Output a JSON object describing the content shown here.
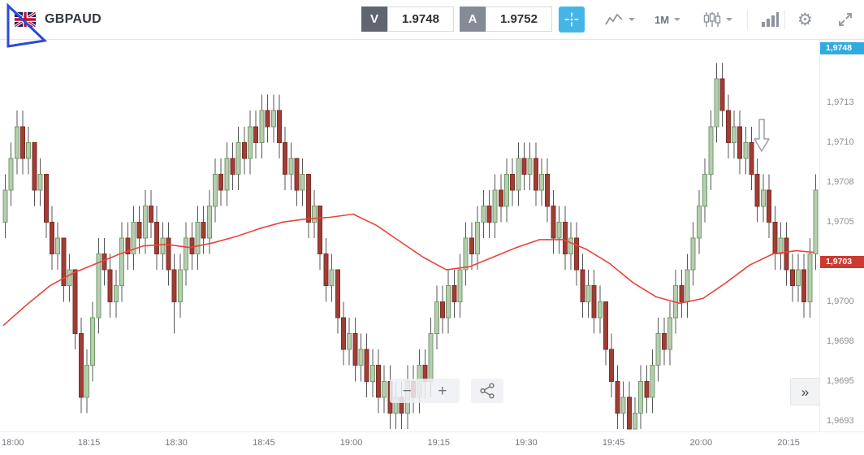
{
  "header": {
    "symbol": "GBPAUD",
    "sell": {
      "label": "V",
      "price": "1.9748"
    },
    "buy": {
      "label": "A",
      "price": "1.9752"
    },
    "timeframe_label": "1M"
  },
  "icons": {
    "gear": "⚙"
  },
  "chart_controls": {
    "zoom_out": "−",
    "zoom_in": "+",
    "collapse": "»"
  },
  "colors": {
    "bull_fill": "#b5cfae",
    "bull_stroke": "#739a6d",
    "bear_fill": "#a03d35",
    "bear_stroke": "#7d2f29",
    "wick": "#555555",
    "ma_line": "#e8443b",
    "bid_label_bg": "#33aadd",
    "last_price_bg": "#cc3a30",
    "accent_blue": "#45b5e8",
    "annotation_blue": "#2b4bd7"
  },
  "chart_data": {
    "type": "candlestick",
    "symbol": "GBPAUD",
    "timeframe": "1M",
    "price_range": [
      1.96918,
      1.97165
    ],
    "x_ticks": [
      {
        "index": 0,
        "label": "18:00"
      },
      {
        "index": 15,
        "label": "18:15"
      },
      {
        "index": 30,
        "label": "18:30"
      },
      {
        "index": 45,
        "label": "18:45"
      },
      {
        "index": 60,
        "label": "19:00"
      },
      {
        "index": 75,
        "label": "19:15"
      },
      {
        "index": 90,
        "label": "19:30"
      },
      {
        "index": 105,
        "label": "19:45"
      },
      {
        "index": 120,
        "label": "20:00"
      },
      {
        "index": 135,
        "label": "20:15"
      }
    ],
    "y_ticks": [
      {
        "value": 1.97125,
        "label": "1,9713"
      },
      {
        "value": 1.971,
        "label": "1,9710"
      },
      {
        "value": 1.97075,
        "label": "1,9708"
      },
      {
        "value": 1.9705,
        "label": "1,9705"
      },
      {
        "value": 1.97,
        "label": "1,9700"
      },
      {
        "value": 1.96975,
        "label": "1,9698"
      },
      {
        "value": 1.9695,
        "label": "1,9695"
      },
      {
        "value": 1.96925,
        "label": "1,9693"
      }
    ],
    "bid_label": {
      "label": "1,9748"
    },
    "last_price_label": {
      "value": 1.97025,
      "label": "1,9703"
    },
    "candles": [
      [
        1.9705,
        1.9708,
        1.9704,
        1.9707
      ],
      [
        1.9707,
        1.971,
        1.9706,
        1.9709
      ],
      [
        1.9709,
        1.9712,
        1.9708,
        1.9711
      ],
      [
        1.9711,
        1.9712,
        1.9708,
        1.9709
      ],
      [
        1.9709,
        1.9711,
        1.9708,
        1.971
      ],
      [
        1.971,
        1.971,
        1.9706,
        1.9707
      ],
      [
        1.9707,
        1.9709,
        1.9706,
        1.9708
      ],
      [
        1.9708,
        1.9708,
        1.9704,
        1.9705
      ],
      [
        1.9705,
        1.9706,
        1.9702,
        1.9703
      ],
      [
        1.9703,
        1.9705,
        1.9702,
        1.9704
      ],
      [
        1.9704,
        1.9704,
        1.97,
        1.9701
      ],
      [
        1.9701,
        1.9703,
        1.97,
        1.9702
      ],
      [
        1.9702,
        1.9702,
        1.9697,
        1.9698
      ],
      [
        1.9698,
        1.9699,
        1.9693,
        1.9694
      ],
      [
        1.9694,
        1.9697,
        1.9693,
        1.9696
      ],
      [
        1.9696,
        1.97,
        1.9695,
        1.9699
      ],
      [
        1.9699,
        1.9704,
        1.9698,
        1.9703
      ],
      [
        1.9703,
        1.9704,
        1.9701,
        1.9702
      ],
      [
        1.9702,
        1.9703,
        1.9699,
        1.97
      ],
      [
        1.97,
        1.9702,
        1.9699,
        1.9701
      ],
      [
        1.9701,
        1.9705,
        1.97,
        1.9704
      ],
      [
        1.9704,
        1.9705,
        1.9702,
        1.9703
      ],
      [
        1.9703,
        1.9706,
        1.9702,
        1.9705
      ],
      [
        1.9705,
        1.9706,
        1.9703,
        1.9704
      ],
      [
        1.9704,
        1.9707,
        1.9703,
        1.9706
      ],
      [
        1.9706,
        1.9707,
        1.9704,
        1.9705
      ],
      [
        1.9705,
        1.9706,
        1.9702,
        1.9703
      ],
      [
        1.9703,
        1.9705,
        1.9702,
        1.9704
      ],
      [
        1.9704,
        1.9705,
        1.9701,
        1.9702
      ],
      [
        1.9702,
        1.9703,
        1.9698,
        1.97
      ],
      [
        1.97,
        1.9703,
        1.9699,
        1.9702
      ],
      [
        1.9702,
        1.9705,
        1.9701,
        1.9704
      ],
      [
        1.9704,
        1.9705,
        1.9702,
        1.9703
      ],
      [
        1.9703,
        1.9706,
        1.9702,
        1.9705
      ],
      [
        1.9705,
        1.9706,
        1.9703,
        1.9704
      ],
      [
        1.9704,
        1.9707,
        1.9703,
        1.9706
      ],
      [
        1.9706,
        1.9709,
        1.9705,
        1.9708
      ],
      [
        1.9708,
        1.9709,
        1.9706,
        1.9707
      ],
      [
        1.9707,
        1.971,
        1.9706,
        1.9709
      ],
      [
        1.9709,
        1.971,
        1.9707,
        1.9708
      ],
      [
        1.9708,
        1.9711,
        1.9707,
        1.971
      ],
      [
        1.971,
        1.9711,
        1.9708,
        1.9709
      ],
      [
        1.9709,
        1.9712,
        1.9708,
        1.9711
      ],
      [
        1.9711,
        1.9712,
        1.9709,
        1.971
      ],
      [
        1.971,
        1.9713,
        1.9709,
        1.9712
      ],
      [
        1.9712,
        1.9713,
        1.971,
        1.9711
      ],
      [
        1.9711,
        1.9713,
        1.971,
        1.9712
      ],
      [
        1.9712,
        1.9713,
        1.9709,
        1.971
      ],
      [
        1.971,
        1.9711,
        1.9707,
        1.9708
      ],
      [
        1.9708,
        1.971,
        1.9707,
        1.9709
      ],
      [
        1.9709,
        1.9709,
        1.9706,
        1.9707
      ],
      [
        1.9707,
        1.9709,
        1.9706,
        1.9708
      ],
      [
        1.9708,
        1.9708,
        1.9704,
        1.9705
      ],
      [
        1.9705,
        1.9707,
        1.9704,
        1.9706
      ],
      [
        1.9706,
        1.9706,
        1.9702,
        1.9703
      ],
      [
        1.9703,
        1.9704,
        1.97,
        1.9701
      ],
      [
        1.9701,
        1.9703,
        1.97,
        1.9702
      ],
      [
        1.9702,
        1.9702,
        1.9698,
        1.9699
      ],
      [
        1.9699,
        1.97,
        1.9696,
        1.9697
      ],
      [
        1.9697,
        1.9699,
        1.9696,
        1.9698
      ],
      [
        1.9698,
        1.9699,
        1.9695,
        1.9696
      ],
      [
        1.9696,
        1.9698,
        1.9695,
        1.9697
      ],
      [
        1.9697,
        1.9698,
        1.9694,
        1.9695
      ],
      [
        1.9695,
        1.9697,
        1.9694,
        1.9696
      ],
      [
        1.9696,
        1.9697,
        1.9693,
        1.9694
      ],
      [
        1.9694,
        1.9696,
        1.9693,
        1.9695
      ],
      [
        1.9695,
        1.9696,
        1.9692,
        1.9693
      ],
      [
        1.9693,
        1.9695,
        1.9692,
        1.9694
      ],
      [
        1.9694,
        1.9695,
        1.9692,
        1.9693
      ],
      [
        1.9693,
        1.9696,
        1.9692,
        1.9695
      ],
      [
        1.9695,
        1.9696,
        1.9693,
        1.9694
      ],
      [
        1.9694,
        1.9697,
        1.9693,
        1.9696
      ],
      [
        1.9696,
        1.9697,
        1.9694,
        1.9695
      ],
      [
        1.9695,
        1.9699,
        1.9694,
        1.9698
      ],
      [
        1.9698,
        1.9701,
        1.9697,
        1.97
      ],
      [
        1.97,
        1.9701,
        1.9698,
        1.9699
      ],
      [
        1.9699,
        1.9702,
        1.9698,
        1.9701
      ],
      [
        1.9701,
        1.9702,
        1.9699,
        1.97
      ],
      [
        1.97,
        1.9703,
        1.9699,
        1.9702
      ],
      [
        1.9702,
        1.9705,
        1.9701,
        1.9704
      ],
      [
        1.9704,
        1.9705,
        1.9702,
        1.9703
      ],
      [
        1.9703,
        1.9706,
        1.9702,
        1.9705
      ],
      [
        1.9705,
        1.9707,
        1.9704,
        1.9706
      ],
      [
        1.9706,
        1.9707,
        1.9704,
        1.9705
      ],
      [
        1.9705,
        1.9708,
        1.9704,
        1.9707
      ],
      [
        1.9707,
        1.9708,
        1.9705,
        1.9706
      ],
      [
        1.9706,
        1.9709,
        1.9705,
        1.9708
      ],
      [
        1.9708,
        1.9709,
        1.9706,
        1.9707
      ],
      [
        1.9707,
        1.971,
        1.9706,
        1.9709
      ],
      [
        1.9709,
        1.971,
        1.9707,
        1.9708
      ],
      [
        1.9708,
        1.971,
        1.9707,
        1.9709
      ],
      [
        1.9709,
        1.971,
        1.9706,
        1.9707
      ],
      [
        1.9707,
        1.9709,
        1.9706,
        1.9708
      ],
      [
        1.9708,
        1.9709,
        1.9705,
        1.9706
      ],
      [
        1.9706,
        1.9707,
        1.9703,
        1.9704
      ],
      [
        1.9704,
        1.9706,
        1.9703,
        1.9705
      ],
      [
        1.9705,
        1.9706,
        1.9702,
        1.9703
      ],
      [
        1.9703,
        1.9705,
        1.9702,
        1.9704
      ],
      [
        1.9704,
        1.9705,
        1.9701,
        1.9702
      ],
      [
        1.9702,
        1.9703,
        1.9699,
        1.97
      ],
      [
        1.97,
        1.9702,
        1.9699,
        1.9701
      ],
      [
        1.9701,
        1.9702,
        1.9698,
        1.9699
      ],
      [
        1.9699,
        1.9701,
        1.9698,
        1.97
      ],
      [
        1.97,
        1.97,
        1.9696,
        1.9697
      ],
      [
        1.9697,
        1.9698,
        1.9694,
        1.9695
      ],
      [
        1.9695,
        1.9696,
        1.9692,
        1.9693
      ],
      [
        1.9693,
        1.9695,
        1.9692,
        1.9694
      ],
      [
        1.9694,
        1.9695,
        1.9692,
        1.9692
      ],
      [
        1.9692,
        1.9694,
        1.9692,
        1.9693
      ],
      [
        1.9693,
        1.9696,
        1.9692,
        1.9695
      ],
      [
        1.9695,
        1.9696,
        1.9693,
        1.9694
      ],
      [
        1.9694,
        1.9697,
        1.9693,
        1.9696
      ],
      [
        1.9696,
        1.9699,
        1.9695,
        1.9698
      ],
      [
        1.9698,
        1.9699,
        1.9696,
        1.9697
      ],
      [
        1.9697,
        1.97,
        1.9696,
        1.9699
      ],
      [
        1.9699,
        1.9702,
        1.9698,
        1.9701
      ],
      [
        1.9701,
        1.9702,
        1.9699,
        1.97
      ],
      [
        1.97,
        1.9703,
        1.9699,
        1.9702
      ],
      [
        1.9702,
        1.9705,
        1.9701,
        1.9704
      ],
      [
        1.9704,
        1.9707,
        1.9703,
        1.9706
      ],
      [
        1.9706,
        1.9709,
        1.9705,
        1.9708
      ],
      [
        1.9708,
        1.9712,
        1.9707,
        1.9711
      ],
      [
        1.9711,
        1.9715,
        1.971,
        1.9714
      ],
      [
        1.9714,
        1.9715,
        1.9711,
        1.9712
      ],
      [
        1.9712,
        1.9713,
        1.9709,
        1.971
      ],
      [
        1.971,
        1.9712,
        1.9709,
        1.9711
      ],
      [
        1.9711,
        1.9712,
        1.9708,
        1.9709
      ],
      [
        1.9709,
        1.9711,
        1.9708,
        1.971
      ],
      [
        1.971,
        1.9711,
        1.9707,
        1.9708
      ],
      [
        1.9708,
        1.9709,
        1.9705,
        1.9706
      ],
      [
        1.9706,
        1.9708,
        1.9705,
        1.9707
      ],
      [
        1.9707,
        1.9708,
        1.9704,
        1.9705
      ],
      [
        1.9705,
        1.9706,
        1.9702,
        1.9703
      ],
      [
        1.9703,
        1.9705,
        1.9702,
        1.9704
      ],
      [
        1.9704,
        1.9705,
        1.9701,
        1.9702
      ],
      [
        1.9702,
        1.9703,
        1.97,
        1.9701
      ],
      [
        1.9701,
        1.9703,
        1.97,
        1.9702
      ],
      [
        1.9702,
        1.9703,
        1.9699,
        1.97
      ],
      [
        1.97,
        1.9704,
        1.9699,
        1.9703
      ],
      [
        1.9703,
        1.9708,
        1.9702,
        1.9707
      ]
    ],
    "ma_line": {
      "name": "Moving Average",
      "points": [
        [
          0,
          1.96985
        ],
        [
          4,
          1.96998
        ],
        [
          8,
          1.9701
        ],
        [
          12,
          1.97018
        ],
        [
          16,
          1.97024
        ],
        [
          20,
          1.9703
        ],
        [
          24,
          1.97035
        ],
        [
          28,
          1.97036
        ],
        [
          32,
          1.97034
        ],
        [
          36,
          1.97037
        ],
        [
          40,
          1.97041
        ],
        [
          44,
          1.97046
        ],
        [
          48,
          1.9705
        ],
        [
          52,
          1.97052
        ],
        [
          56,
          1.97053
        ],
        [
          60,
          1.97055
        ],
        [
          64,
          1.97048
        ],
        [
          68,
          1.97038
        ],
        [
          72,
          1.97028
        ],
        [
          76,
          1.9702
        ],
        [
          80,
          1.97022
        ],
        [
          84,
          1.97028
        ],
        [
          88,
          1.97034
        ],
        [
          92,
          1.97039
        ],
        [
          96,
          1.97039
        ],
        [
          100,
          1.97033
        ],
        [
          104,
          1.97024
        ],
        [
          108,
          1.97012
        ],
        [
          112,
          1.97003
        ],
        [
          116,
          1.96999
        ],
        [
          120,
          1.97002
        ],
        [
          124,
          1.97012
        ],
        [
          128,
          1.97023
        ],
        [
          132,
          1.9703
        ],
        [
          136,
          1.97032
        ],
        [
          139,
          1.97031
        ]
      ]
    }
  }
}
